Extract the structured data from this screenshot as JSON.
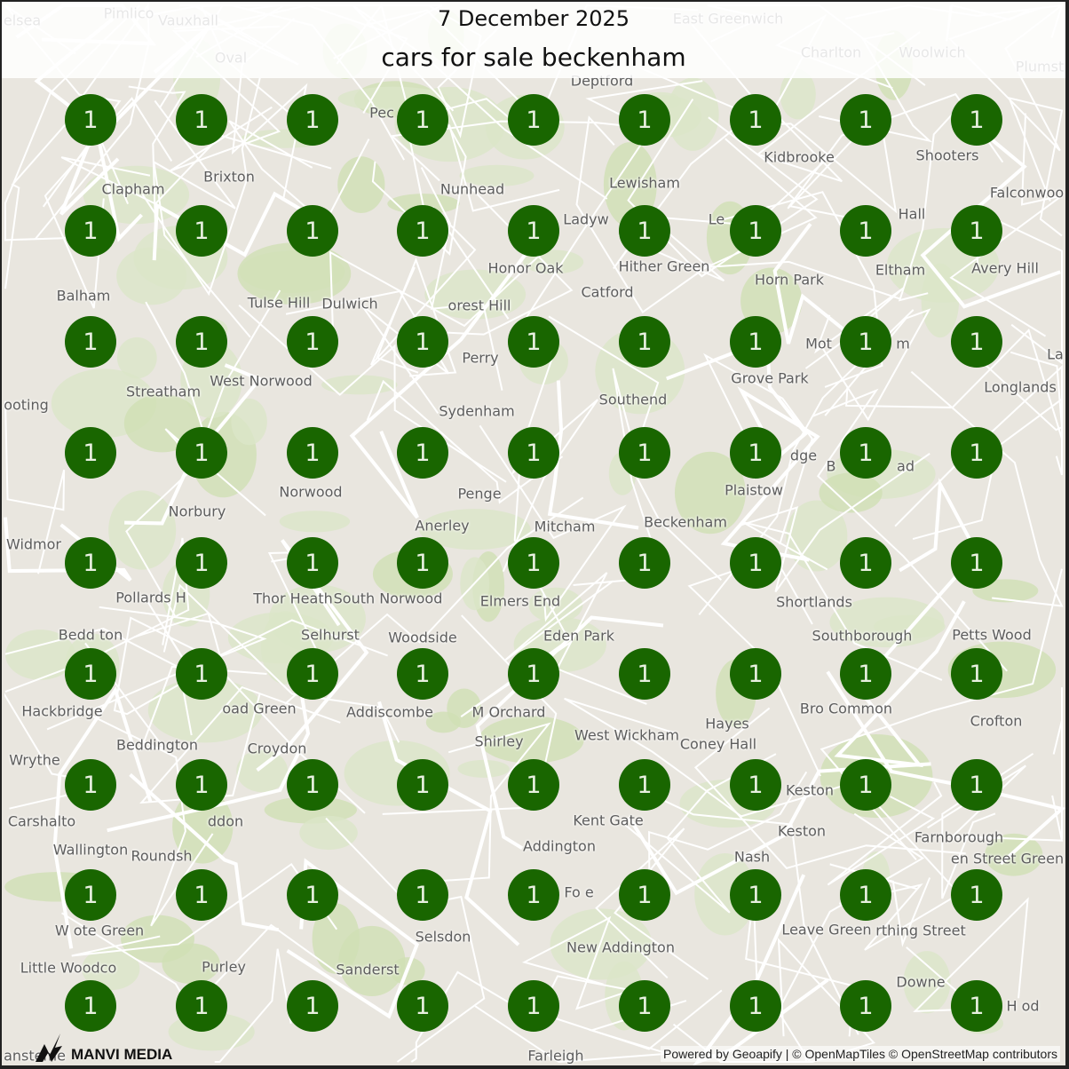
{
  "header": {
    "date": "7 December 2025",
    "title": "cars for sale beckenham"
  },
  "map": {
    "places": [
      "elsea",
      "Pimlico",
      "Vauxhall",
      "East Greenwich",
      "Charlton",
      "Woolwich",
      "Plumst",
      "Oval",
      "Deptford",
      "Pec",
      "Kidbrooke",
      "Shooters",
      "Clapham",
      "Brixton",
      "Nunhead",
      "Lewisham",
      "Ladyw",
      "Le",
      "Hall",
      "Falconwoo",
      "Honor Oak",
      "Hither Green",
      "Eltham",
      "Avery Hill",
      "Balham",
      "Catford",
      "Horn Park",
      "Tulse Hill",
      "Dulwich",
      "West Norwood",
      "orest Hill",
      "Perry",
      "Mot",
      "m",
      "Grove Park",
      "La",
      "Streatham",
      "Sydenham",
      "Southend",
      "Longlands",
      "ooting",
      "Norwood",
      "Penge",
      "dge",
      "Plaistow",
      "B",
      "ad",
      "Norbury",
      "Anerley",
      "Mitcham",
      "Beckenham",
      "Shortlands",
      "Widmor",
      "Pollards H",
      "Thor Heath",
      "South Norwood",
      "Elmers End",
      "Eden Park",
      "Petts Wood",
      "Southborough",
      "Bedd ton",
      "Selhurst",
      "Woodside",
      "M Orchard",
      "Bro Common",
      "oad Green",
      "Hackbridge",
      "Addiscombe",
      "Hayes",
      "Crofton",
      "Shirley",
      "West Wickham",
      "Wrythe",
      "Beddington",
      "Croydon",
      "Coney Hall",
      "Carshalto",
      "ddon",
      "Kent Gate",
      "Keston",
      "Keston",
      "Wallington",
      "Addington",
      "Farnborough",
      "Nash",
      "Roundsh",
      "W ote Green",
      "Fo e",
      "Leave Green",
      "rthing Street",
      "en Street Green",
      "Selsdon",
      "New Addington",
      "Little Woodco",
      "Purley",
      "Sanderst",
      "Downe",
      "H od",
      "ansteme",
      "Farleigh"
    ],
    "marker_color": "#196600",
    "markers": [
      [
        "1",
        "1",
        "1",
        "1",
        "1",
        "1",
        "1",
        "1",
        "1"
      ],
      [
        "1",
        "1",
        "1",
        "1",
        "1",
        "1",
        "1",
        "1",
        "1"
      ],
      [
        "1",
        "1",
        "1",
        "1",
        "1",
        "1",
        "1",
        "1",
        "1"
      ],
      [
        "1",
        "1",
        "1",
        "1",
        "1",
        "1",
        "1",
        "1",
        "1"
      ],
      [
        "1",
        "1",
        "1",
        "1",
        "1",
        "1",
        "1",
        "1",
        "1"
      ],
      [
        "1",
        "1",
        "1",
        "1",
        "1",
        "1",
        "1",
        "1",
        "1"
      ],
      [
        "1",
        "1",
        "1",
        "1",
        "1",
        "1",
        "1",
        "1",
        "1"
      ],
      [
        "1",
        "1",
        "1",
        "1",
        "1",
        "1",
        "1",
        "1",
        "1"
      ],
      [
        "1",
        "1",
        "1",
        "1",
        "1",
        "1",
        "1",
        "1",
        "1"
      ]
    ]
  },
  "footer": {
    "logo_text": "MANVI MEDIA",
    "attribution": "Powered by Geoapify | © OpenMapTiles © OpenStreetMap contributors"
  }
}
